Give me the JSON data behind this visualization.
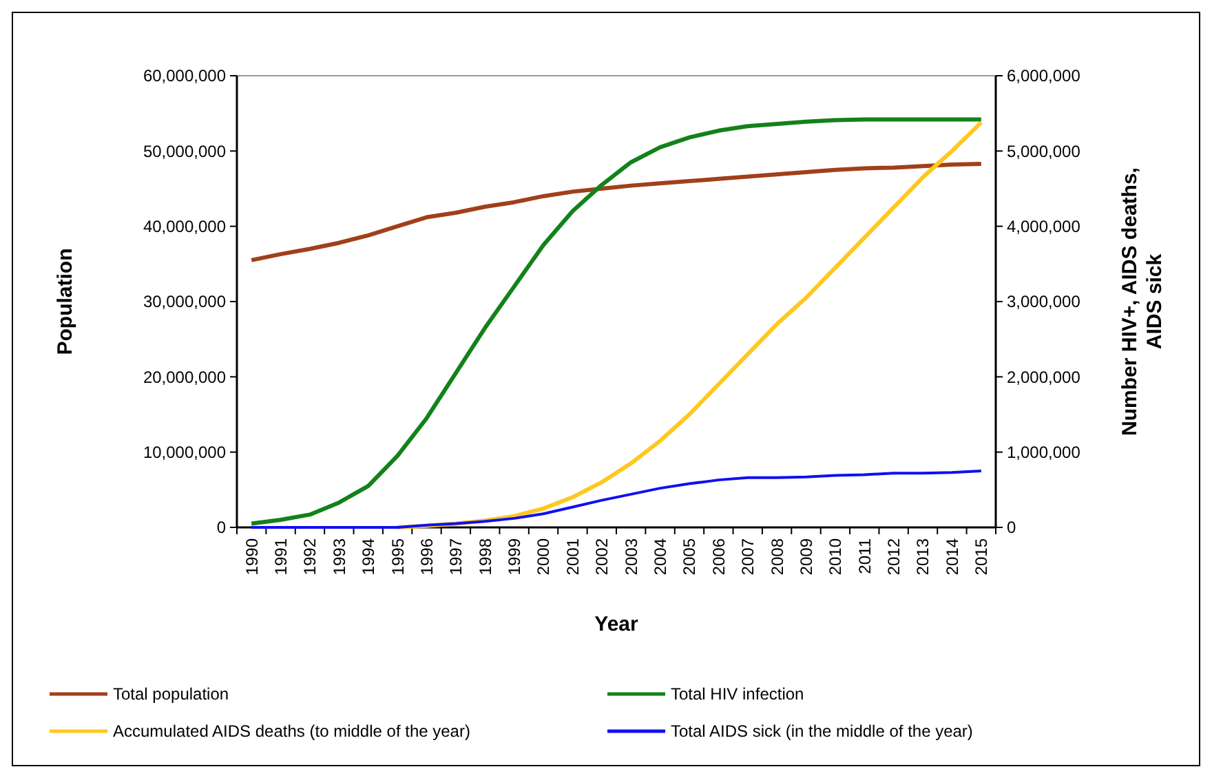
{
  "chart_data": {
    "type": "line",
    "xlabel": "Year",
    "ylabel": "Population",
    "y2label": "Number HIV+, AIDS deaths, AIDS sick",
    "categories": [
      "1990",
      "1991",
      "1992",
      "1993",
      "1994",
      "1995",
      "1996",
      "1997",
      "1998",
      "1999",
      "2000",
      "2001",
      "2002",
      "2003",
      "2004",
      "2005",
      "2006",
      "2007",
      "2008",
      "2009",
      "2010",
      "2011",
      "2012",
      "2013",
      "2014",
      "2015"
    ],
    "ylim": [
      0,
      60000000
    ],
    "yticks": [
      {
        "value": 0,
        "label": "0"
      },
      {
        "value": 10000000,
        "label": "10,000,000"
      },
      {
        "value": 20000000,
        "label": "20,000,000"
      },
      {
        "value": 30000000,
        "label": "30,000,000"
      },
      {
        "value": 40000000,
        "label": "40,000,000"
      },
      {
        "value": 50000000,
        "label": "50,000,000"
      },
      {
        "value": 60000000,
        "label": "60,000,000"
      }
    ],
    "y2lim": [
      0,
      6000000
    ],
    "y2ticks": [
      {
        "value": 0,
        "label": "0"
      },
      {
        "value": 1000000,
        "label": "1,000,000"
      },
      {
        "value": 2000000,
        "label": "2,000,000"
      },
      {
        "value": 3000000,
        "label": "3,000,000"
      },
      {
        "value": 4000000,
        "label": "4,000,000"
      },
      {
        "value": 5000000,
        "label": "5,000,000"
      },
      {
        "value": 6000000,
        "label": "6,000,000"
      }
    ],
    "legend": "bottom",
    "grid": false,
    "marker": "none",
    "line_style": "solid",
    "series": [
      {
        "name": "Total population",
        "color": "#a0401a",
        "values": [
          35500000,
          36300000,
          37000000,
          37800000,
          38800000,
          40000000,
          41200000,
          41800000,
          42600000,
          43200000,
          44000000,
          44600000,
          45000000,
          45400000,
          45700000,
          46000000,
          46300000,
          46600000,
          46900000,
          47200000,
          47500000,
          47700000,
          47800000,
          48000000,
          48200000,
          48300000
        ]
      },
      {
        "name": "Total HIV infection",
        "color": "#12821a",
        "axis": "y2",
        "values": [
          50000,
          100000,
          170000,
          330000,
          550000,
          950000,
          1450000,
          2050000,
          2650000,
          3200000,
          3750000,
          4200000,
          4550000,
          4850000,
          5050000,
          5180000,
          5270000,
          5330000,
          5360000,
          5390000,
          5410000,
          5420000,
          5420000,
          5420000,
          5420000,
          5420000
        ]
      },
      {
        "name": "Accumulated AIDS deaths (to middle of the year)",
        "color": "#ffc820",
        "axis": "y2",
        "values": [
          null,
          null,
          null,
          null,
          null,
          0,
          20000,
          50000,
          90000,
          150000,
          250000,
          400000,
          600000,
          850000,
          1150000,
          1500000,
          1900000,
          2300000,
          2700000,
          3050000,
          3450000,
          3850000,
          4250000,
          4650000,
          5000000,
          5380000
        ]
      },
      {
        "name": "Total AIDS sick (in the middle of the year)",
        "color": "#1010f0",
        "axis": "y2",
        "values": [
          0,
          0,
          0,
          0,
          0,
          0,
          30000,
          50000,
          80000,
          120000,
          180000,
          270000,
          360000,
          440000,
          520000,
          580000,
          630000,
          660000,
          660000,
          670000,
          690000,
          700000,
          720000,
          720000,
          730000,
          750000
        ]
      }
    ]
  }
}
